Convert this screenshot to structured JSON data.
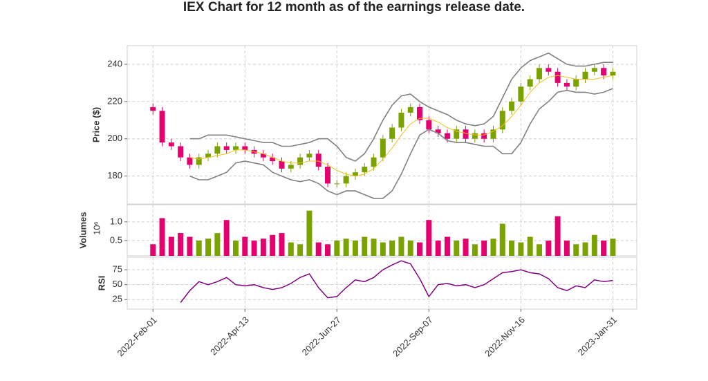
{
  "chart_data": [
    {
      "type": "candlestick",
      "title": "IEX Chart for 12 month as of the earnings release date.",
      "ylabel": "Price ($)",
      "x": [
        0,
        5,
        10,
        15,
        20,
        25,
        30,
        35,
        40,
        45,
        50,
        55,
        60,
        65,
        70,
        75,
        80,
        85,
        90,
        95,
        100,
        105,
        110,
        115,
        120,
        125,
        130,
        135,
        140,
        145,
        150,
        155,
        160,
        165,
        170,
        175,
        180,
        185,
        190,
        195,
        200,
        205,
        210,
        215,
        220,
        225,
        230,
        235,
        240,
        245,
        250
      ],
      "open": [
        217,
        215,
        198,
        196,
        190,
        186,
        190,
        192,
        196,
        194,
        196,
        194,
        192,
        190,
        188,
        184,
        186,
        190,
        192,
        185,
        176,
        176,
        180,
        182,
        185,
        190,
        200,
        206,
        214,
        217,
        210,
        205,
        203,
        200,
        205,
        200,
        203,
        200,
        205,
        215,
        220,
        228,
        232,
        238,
        236,
        230,
        228,
        232,
        236,
        238,
        234
      ],
      "high": [
        219,
        217,
        200,
        198,
        192,
        192,
        194,
        198,
        198,
        198,
        198,
        196,
        194,
        192,
        190,
        188,
        192,
        194,
        194,
        187,
        178,
        182,
        184,
        187,
        192,
        202,
        208,
        216,
        219,
        219,
        212,
        207,
        205,
        207,
        207,
        205,
        205,
        207,
        217,
        222,
        230,
        234,
        240,
        240,
        238,
        232,
        234,
        238,
        240,
        240,
        238
      ],
      "low": [
        213,
        196,
        194,
        188,
        184,
        184,
        188,
        190,
        192,
        192,
        192,
        190,
        188,
        186,
        182,
        182,
        184,
        188,
        183,
        174,
        174,
        174,
        178,
        180,
        183,
        188,
        198,
        204,
        212,
        208,
        203,
        201,
        198,
        198,
        198,
        198,
        198,
        198,
        203,
        213,
        218,
        226,
        230,
        234,
        228,
        226,
        226,
        230,
        234,
        232,
        232
      ],
      "close": [
        215,
        198,
        196,
        190,
        186,
        190,
        192,
        196,
        194,
        196,
        194,
        192,
        190,
        188,
        184,
        186,
        190,
        192,
        185,
        176,
        176,
        180,
        182,
        185,
        190,
        200,
        206,
        214,
        217,
        210,
        205,
        203,
        200,
        205,
        200,
        203,
        200,
        205,
        215,
        220,
        228,
        232,
        238,
        236,
        230,
        228,
        232,
        236,
        238,
        234,
        236
      ],
      "up_color": "#7ba300",
      "down_color": "#e3006f",
      "lines": [
        {
          "color": "#808080",
          "values": [
            null,
            null,
            null,
            null,
            200,
            200,
            202,
            202,
            202,
            201,
            200,
            199,
            198,
            198,
            196,
            196,
            197,
            198,
            200,
            200,
            196,
            190,
            188,
            192,
            200,
            210,
            218,
            223,
            224,
            220,
            217,
            215,
            213,
            210,
            208,
            207,
            208,
            212,
            222,
            232,
            238,
            242,
            244,
            246,
            243,
            240,
            239,
            239,
            240,
            241,
            241
          ]
        },
        {
          "color": "#808080",
          "values": [
            null,
            null,
            null,
            null,
            180,
            178,
            178,
            180,
            182,
            187,
            188,
            187,
            186,
            182,
            180,
            178,
            177,
            178,
            176,
            172,
            170,
            172,
            172,
            170,
            168,
            168,
            172,
            181,
            192,
            202,
            205,
            203,
            199,
            198,
            198,
            197,
            196,
            196,
            192,
            192,
            198,
            208,
            216,
            220,
            225,
            226,
            225,
            225,
            224,
            225,
            227
          ]
        },
        {
          "color": "#f2c21b",
          "values": [
            null,
            null,
            null,
            null,
            190,
            189,
            190,
            191,
            192,
            194,
            194,
            193,
            192,
            190,
            188,
            187,
            187,
            188,
            188,
            186,
            183,
            181,
            180,
            181,
            184,
            189,
            195,
            202,
            208,
            211,
            211,
            209,
            206,
            204,
            203,
            202,
            202,
            204,
            207,
            212,
            218,
            225,
            230,
            233,
            234,
            233,
            232,
            232,
            232,
            233,
            234
          ]
        }
      ],
      "xlim": [
        -14,
        263
      ],
      "ylim": [
        165,
        250
      ],
      "yticks": [
        180,
        200,
        220,
        240
      ]
    },
    {
      "type": "bar",
      "ylabel": "Volumes",
      "offset_label": "10⁶",
      "values": [
        0.4,
        1.1,
        0.6,
        0.7,
        0.6,
        0.5,
        0.55,
        0.7,
        1.05,
        0.5,
        0.6,
        0.5,
        0.55,
        0.65,
        0.7,
        0.45,
        0.4,
        1.3,
        0.45,
        0.4,
        0.5,
        0.55,
        0.5,
        0.6,
        0.55,
        0.45,
        0.5,
        0.6,
        0.5,
        0.45,
        1.05,
        0.5,
        0.6,
        0.5,
        0.55,
        0.4,
        0.5,
        0.55,
        0.95,
        0.5,
        0.45,
        0.6,
        0.4,
        0.5,
        1.15,
        0.5,
        0.4,
        0.45,
        0.65,
        0.5,
        0.55
      ],
      "ylim": [
        0.09,
        1.46
      ],
      "yticks": [
        0.5,
        {
          "value": 1,
          "label": "1.0"
        }
      ]
    },
    {
      "type": "line",
      "ylabel": "RSI",
      "color": "#800080",
      "values": [
        null,
        null,
        null,
        20,
        40,
        55,
        50,
        55,
        62,
        50,
        48,
        50,
        45,
        42,
        45,
        52,
        62,
        68,
        45,
        28,
        30,
        45,
        58,
        55,
        62,
        75,
        83,
        90,
        85,
        60,
        30,
        50,
        52,
        48,
        50,
        45,
        50,
        60,
        70,
        72,
        75,
        70,
        68,
        60,
        45,
        40,
        48,
        45,
        58,
        55,
        57
      ],
      "ylim": [
        9,
        96
      ],
      "yticks": [
        25,
        50,
        75
      ],
      "xticks": [
        {
          "value": 0,
          "label": "2022-Feb-01"
        },
        {
          "value": 50,
          "label": "2022-Apr-13"
        },
        {
          "value": 100,
          "label": "2022-Jun-27"
        },
        {
          "value": 150,
          "label": "2022-Sep-07"
        },
        {
          "value": 200,
          "label": "2022-Nov-16"
        },
        {
          "value": 250,
          "label": "2023-Jan-31"
        }
      ]
    }
  ]
}
